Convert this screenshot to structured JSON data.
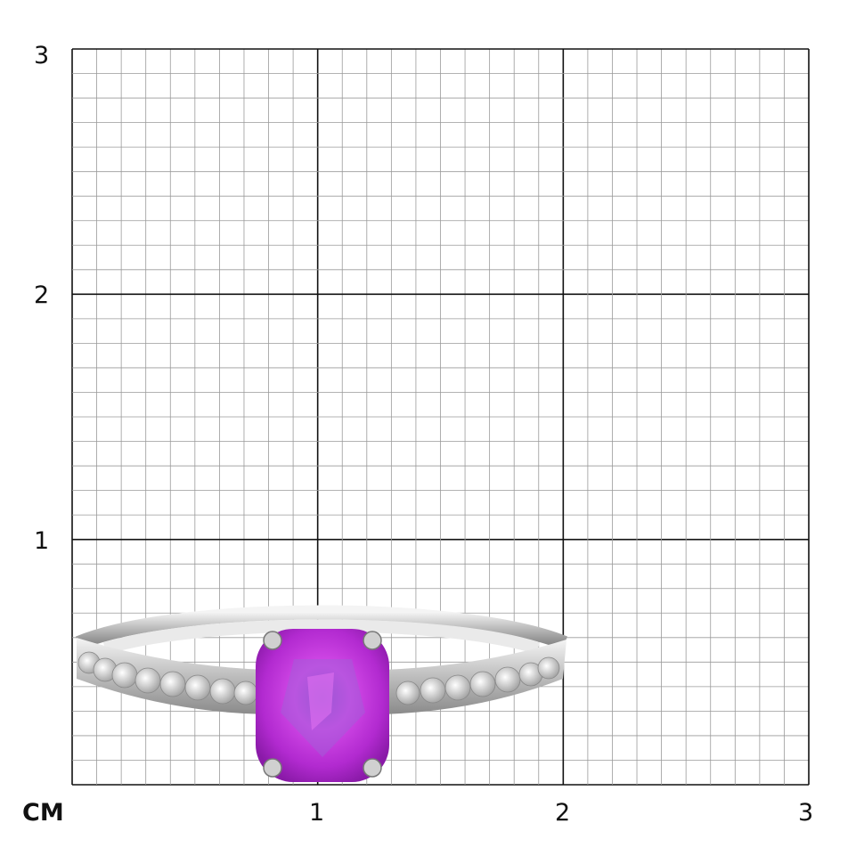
{
  "scale": {
    "unit_label": "CM",
    "x_ticks": [
      "1",
      "2",
      "3"
    ],
    "y_ticks": [
      "1",
      "2",
      "3"
    ],
    "range_cm": [
      0,
      3
    ],
    "minor_divisions_per_cm": 10
  },
  "product": {
    "name_icon": "ring-with-cushion-gemstone",
    "stone_color": "#b92ed6",
    "metal_color": "#d9d9d9"
  },
  "colors": {
    "minor_grid": "#9a9a9a",
    "major_grid": "#111111"
  }
}
